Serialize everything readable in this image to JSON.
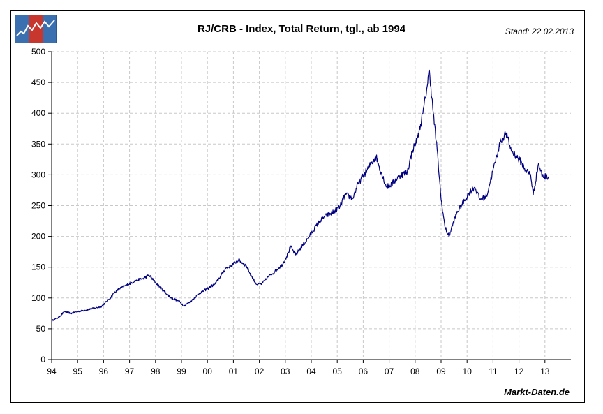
{
  "header": {
    "title": "RJ/CRB - Index, Total Return, tgl., ab 1994",
    "stand": "Stand: 22.02.2013",
    "brand": "Markt-Daten.de"
  },
  "colors": {
    "line": "#000080",
    "grid": "#c8c8c8",
    "logo_blue": "#3a6fb0",
    "logo_red": "#c8372d"
  },
  "icons": {
    "logo": "line-chart-logo-icon"
  },
  "chart_data": {
    "type": "line",
    "title": "RJ/CRB - Index, Total Return, tgl., ab 1994",
    "xlabel": "",
    "ylabel": "",
    "xlim": [
      1994.0,
      2014.0
    ],
    "ylim": [
      0,
      500
    ],
    "grid": true,
    "x_ticks": [
      {
        "v": 1994,
        "label": "94"
      },
      {
        "v": 1995,
        "label": "95"
      },
      {
        "v": 1996,
        "label": "96"
      },
      {
        "v": 1997,
        "label": "97"
      },
      {
        "v": 1998,
        "label": "98"
      },
      {
        "v": 1999,
        "label": "99"
      },
      {
        "v": 2000,
        "label": "00"
      },
      {
        "v": 2001,
        "label": "01"
      },
      {
        "v": 2002,
        "label": "02"
      },
      {
        "v": 2003,
        "label": "03"
      },
      {
        "v": 2004,
        "label": "04"
      },
      {
        "v": 2005,
        "label": "05"
      },
      {
        "v": 2006,
        "label": "06"
      },
      {
        "v": 2007,
        "label": "07"
      },
      {
        "v": 2008,
        "label": "08"
      },
      {
        "v": 2009,
        "label": "09"
      },
      {
        "v": 2010,
        "label": "10"
      },
      {
        "v": 2011,
        "label": "11"
      },
      {
        "v": 2012,
        "label": "12"
      },
      {
        "v": 2013,
        "label": "13"
      }
    ],
    "y_ticks": [
      {
        "v": 0,
        "label": "0"
      },
      {
        "v": 50,
        "label": "50"
      },
      {
        "v": 100,
        "label": "100"
      },
      {
        "v": 150,
        "label": "150"
      },
      {
        "v": 200,
        "label": "200"
      },
      {
        "v": 250,
        "label": "250"
      },
      {
        "v": 300,
        "label": "300"
      },
      {
        "v": 350,
        "label": "350"
      },
      {
        "v": 400,
        "label": "400"
      },
      {
        "v": 450,
        "label": "450"
      },
      {
        "v": 500,
        "label": "500"
      }
    ],
    "series": [
      {
        "x": [
          1994.0,
          1994.25,
          1994.5,
          1994.75,
          1995.0,
          1995.5,
          1995.9,
          1996.2,
          1996.4,
          1996.6,
          1996.9,
          1997.2,
          1997.5,
          1997.75,
          1998.0,
          1998.3,
          1998.6,
          1998.9,
          1999.1,
          1999.4,
          1999.7,
          2000.0,
          2000.3,
          2000.5,
          2000.7,
          2000.9,
          2001.2,
          2001.5,
          2001.7,
          2001.9,
          2002.1,
          2002.3,
          2002.6,
          2002.9,
          2003.1,
          2003.2,
          2003.4,
          2003.6,
          2003.9,
          2004.2,
          2004.5,
          2004.8,
          2005.1,
          2005.3,
          2005.6,
          2005.8,
          2006.0,
          2006.3,
          2006.5,
          2006.6,
          2006.9,
          2007.1,
          2007.4,
          2007.7,
          2007.9,
          2008.1,
          2008.3,
          2008.45,
          2008.55,
          2008.7,
          2008.85,
          2009.0,
          2009.15,
          2009.3,
          2009.6,
          2009.9,
          2010.1,
          2010.3,
          2010.5,
          2010.75,
          2010.9,
          2011.2,
          2011.3,
          2011.5,
          2011.7,
          2011.9,
          2012.1,
          2012.25,
          2012.45,
          2012.55,
          2012.75,
          2012.9,
          2013.14
        ],
        "y": [
          63,
          68,
          78,
          75,
          78,
          82,
          86,
          97,
          108,
          115,
          121,
          128,
          131,
          137,
          125,
          112,
          100,
          95,
          87,
          96,
          108,
          115,
          123,
          135,
          148,
          152,
          162,
          152,
          135,
          122,
          123,
          133,
          143,
          155,
          172,
          183,
          170,
          182,
          198,
          218,
          232,
          238,
          248,
          268,
          262,
          285,
          298,
          318,
          330,
          315,
          280,
          285,
          298,
          305,
          340,
          360,
          400,
          440,
          470,
          400,
          340,
          260,
          215,
          200,
          238,
          258,
          272,
          280,
          260,
          265,
          290,
          340,
          355,
          368,
          340,
          330,
          320,
          308,
          300,
          268,
          318,
          298,
          297
        ]
      }
    ]
  }
}
